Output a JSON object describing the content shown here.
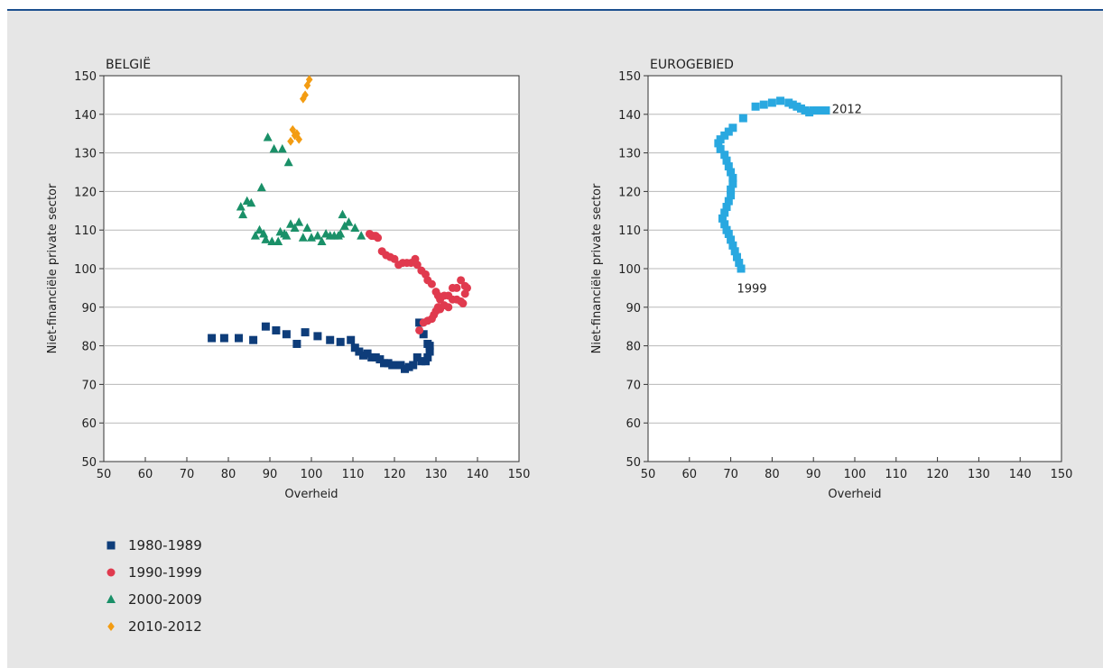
{
  "chart_data": [
    {
      "type": "scatter",
      "title": "BELGIË",
      "xlabel": "Overheid",
      "ylabel": "Niet-financiële private sector",
      "xlim": [
        50,
        150
      ],
      "ylim": [
        50,
        150
      ],
      "xticks": [
        50,
        60,
        70,
        80,
        90,
        100,
        110,
        120,
        130,
        140,
        150
      ],
      "yticks": [
        50,
        60,
        70,
        80,
        90,
        100,
        110,
        120,
        130,
        140,
        150
      ],
      "grid": "horizontal",
      "legend": "bottom-left",
      "series": [
        {
          "name": "1980-1989",
          "marker": "square",
          "color": "#0e3d7a",
          "points": [
            [
              76,
              82
            ],
            [
              79,
              82
            ],
            [
              82.5,
              82
            ],
            [
              86,
              81.5
            ],
            [
              89,
              85
            ],
            [
              91.5,
              84
            ],
            [
              94,
              83
            ],
            [
              96.5,
              80.5
            ],
            [
              98.5,
              83.5
            ],
            [
              101.5,
              82.5
            ],
            [
              104.5,
              81.5
            ],
            [
              107,
              81
            ],
            [
              109.5,
              81.5
            ],
            [
              110.5,
              79.5
            ],
            [
              111.5,
              78.5
            ],
            [
              112.5,
              77.5
            ],
            [
              113.5,
              78
            ],
            [
              114.5,
              77
            ],
            [
              115.5,
              77
            ],
            [
              116.5,
              76.5
            ],
            [
              117.5,
              75.5
            ],
            [
              118.5,
              75.5
            ],
            [
              119.5,
              75
            ],
            [
              120.5,
              75
            ],
            [
              121.5,
              75
            ],
            [
              122.5,
              74
            ],
            [
              123.5,
              74.5
            ],
            [
              124.5,
              75
            ],
            [
              125.5,
              77
            ],
            [
              126.5,
              76
            ],
            [
              127.5,
              76
            ],
            [
              128,
              77
            ],
            [
              128.5,
              78.5
            ],
            [
              128.5,
              80
            ],
            [
              128,
              80.5
            ],
            [
              127,
              83
            ],
            [
              126,
              86
            ]
          ]
        },
        {
          "name": "1990-1999",
          "marker": "circle",
          "color": "#e03a4e",
          "points": [
            [
              126,
              84
            ],
            [
              127,
              86
            ],
            [
              128,
              86.5
            ],
            [
              129,
              87
            ],
            [
              129.5,
              88
            ],
            [
              130,
              89
            ],
            [
              130.5,
              90
            ],
            [
              131,
              89.5
            ],
            [
              132,
              90.5
            ],
            [
              133,
              90
            ],
            [
              134,
              92
            ],
            [
              135,
              92
            ],
            [
              136,
              91.5
            ],
            [
              136.5,
              91
            ],
            [
              137,
              93.5
            ],
            [
              137.5,
              95
            ],
            [
              137,
              95.5
            ],
            [
              136,
              97
            ],
            [
              135,
              95
            ],
            [
              134,
              95
            ],
            [
              133,
              93
            ],
            [
              132,
              93
            ],
            [
              131,
              92
            ],
            [
              130.5,
              93
            ],
            [
              130,
              94
            ],
            [
              129,
              96
            ],
            [
              128,
              97
            ],
            [
              127.5,
              98.5
            ],
            [
              126.5,
              99.5
            ],
            [
              125.5,
              101
            ],
            [
              125,
              102.5
            ],
            [
              124,
              101.5
            ],
            [
              123,
              101.5
            ],
            [
              122,
              101.5
            ],
            [
              121,
              101
            ],
            [
              120,
              102.5
            ],
            [
              119,
              103
            ],
            [
              118,
              103.5
            ],
            [
              117,
              104.5
            ],
            [
              116,
              108
            ],
            [
              115.5,
              108.5
            ],
            [
              115,
              108.5
            ],
            [
              114.5,
              108.5
            ],
            [
              114,
              109
            ]
          ]
        },
        {
          "name": "2000-2009",
          "marker": "triangle",
          "color": "#1a9068",
          "points": [
            [
              83,
              116
            ],
            [
              83.5,
              114
            ],
            [
              84.5,
              117.5
            ],
            [
              85.5,
              117
            ],
            [
              86.5,
              108.5
            ],
            [
              87.5,
              110
            ],
            [
              88,
              121
            ],
            [
              88.5,
              109
            ],
            [
              89,
              107.5
            ],
            [
              89.5,
              134
            ],
            [
              90.5,
              107
            ],
            [
              91,
              131
            ],
            [
              92,
              107
            ],
            [
              92.5,
              109.5
            ],
            [
              93,
              131
            ],
            [
              93.5,
              109
            ],
            [
              94,
              108.5
            ],
            [
              94.5,
              127.5
            ],
            [
              95,
              111.5
            ],
            [
              96,
              110.5
            ],
            [
              97,
              112
            ],
            [
              98,
              108
            ],
            [
              99,
              110.5
            ],
            [
              100,
              108
            ],
            [
              101.5,
              108.5
            ],
            [
              102.5,
              107
            ],
            [
              103.5,
              109
            ],
            [
              104.5,
              108.5
            ],
            [
              105.5,
              108.5
            ],
            [
              106.5,
              108.5
            ],
            [
              107,
              109
            ],
            [
              107.5,
              114
            ],
            [
              108,
              111
            ],
            [
              109,
              112
            ],
            [
              110.5,
              110.5
            ],
            [
              112,
              108.5
            ]
          ]
        },
        {
          "name": "2010-2012",
          "marker": "diamond",
          "color": "#f39c12",
          "points": [
            [
              95,
              133
            ],
            [
              95.5,
              136
            ],
            [
              96,
              134.5
            ],
            [
              96.5,
              135
            ],
            [
              97,
              133.5
            ],
            [
              98,
              144
            ],
            [
              98.5,
              145
            ],
            [
              99,
              147.5
            ],
            [
              99.5,
              149
            ]
          ]
        }
      ]
    },
    {
      "type": "scatter",
      "title": "EUROGEBIED",
      "xlabel": "Overheid",
      "ylabel": "Niet-financiële private sector",
      "xlim": [
        50,
        150
      ],
      "ylim": [
        50,
        150
      ],
      "xticks": [
        50,
        60,
        70,
        80,
        90,
        100,
        110,
        120,
        130,
        140,
        150
      ],
      "yticks": [
        50,
        60,
        70,
        80,
        90,
        100,
        110,
        120,
        130,
        140,
        150
      ],
      "grid": "horizontal",
      "annotations": [
        {
          "text": "1999",
          "x": 71.5,
          "y": 95
        },
        {
          "text": "2012",
          "x": 94.5,
          "y": 141.5
        }
      ],
      "series": [
        {
          "marker": "square",
          "color": "#29a8e0",
          "points": [
            [
              72.5,
              100
            ],
            [
              72,
              101.5
            ],
            [
              71.5,
              103
            ],
            [
              71,
              104.5
            ],
            [
              70.5,
              106
            ],
            [
              70,
              107.5
            ],
            [
              69.5,
              109
            ],
            [
              69,
              110
            ],
            [
              68.5,
              111.5
            ],
            [
              68,
              113
            ],
            [
              68.5,
              114.5
            ],
            [
              69,
              116
            ],
            [
              69.5,
              117.5
            ],
            [
              70,
              119
            ],
            [
              70,
              120.5
            ],
            [
              70.5,
              122
            ],
            [
              70.5,
              123.5
            ],
            [
              70,
              125
            ],
            [
              69.5,
              126.5
            ],
            [
              69,
              128
            ],
            [
              68.5,
              129.5
            ],
            [
              67.5,
              131
            ],
            [
              67,
              132.5
            ],
            [
              67.5,
              133.5
            ],
            [
              68.5,
              134.5
            ],
            [
              69.5,
              135.5
            ],
            [
              70.5,
              136.5
            ],
            [
              73,
              139
            ],
            [
              76,
              142
            ],
            [
              78,
              142.5
            ],
            [
              80,
              143
            ],
            [
              82,
              143.5
            ],
            [
              84,
              143
            ],
            [
              85,
              142.5
            ],
            [
              86,
              142
            ],
            [
              87,
              141.5
            ],
            [
              88,
              141
            ],
            [
              89,
              140.5
            ],
            [
              90,
              141
            ],
            [
              91,
              141
            ],
            [
              92,
              141
            ],
            [
              93,
              141
            ]
          ]
        }
      ]
    }
  ]
}
